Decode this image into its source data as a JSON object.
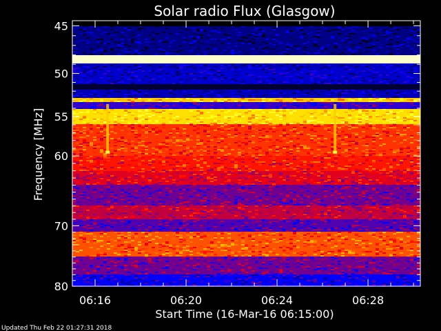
{
  "chart_data": {
    "type": "heatmap",
    "title": "Solar radio Flux (Glasgow)",
    "xlabel": "Start Time (16-Mar-16 06:15:00)",
    "ylabel": "Frequency [MHz]",
    "x_tick_labels": [
      "06:16",
      "06:20",
      "06:24",
      "06:28"
    ],
    "x_tick_minutes": [
      1,
      5,
      9,
      13
    ],
    "xlim_minutes": [
      0,
      15.3
    ],
    "y_tick_labels": [
      "45",
      "50",
      "55",
      "60",
      "70",
      "80"
    ],
    "y_ticks": [
      45,
      50,
      55,
      60,
      70,
      80
    ],
    "ylim": [
      44.5,
      80
    ],
    "y_scale": "log",
    "colormap": [
      "#000000",
      "#0000ff",
      "#ff0000",
      "#ffff00",
      "#ffffff"
    ],
    "bands": [
      {
        "from": 44.5,
        "to": 45.0,
        "level": 0.0
      },
      {
        "from": 45.0,
        "to": 48.0,
        "level": 0.13
      },
      {
        "from": 48.0,
        "to": 48.9,
        "level": 0.95
      },
      {
        "from": 48.9,
        "to": 49.4,
        "level": 0.18
      },
      {
        "from": 49.4,
        "to": 51.2,
        "level": 0.2
      },
      {
        "from": 51.2,
        "to": 51.9,
        "level": 0.05
      },
      {
        "from": 51.9,
        "to": 52.7,
        "level": 0.18
      },
      {
        "from": 52.7,
        "to": 53.2,
        "level": 0.7
      },
      {
        "from": 53.2,
        "to": 54.0,
        "level": 0.3
      },
      {
        "from": 54.0,
        "to": 56.0,
        "level": 0.72
      },
      {
        "from": 56.0,
        "to": 60.0,
        "level": 0.55
      },
      {
        "from": 60.0,
        "to": 62.0,
        "level": 0.52
      },
      {
        "from": 62.0,
        "to": 64.0,
        "level": 0.47
      },
      {
        "from": 64.0,
        "to": 67.0,
        "level": 0.36
      },
      {
        "from": 67.0,
        "to": 69.0,
        "level": 0.44
      },
      {
        "from": 69.0,
        "to": 71.0,
        "level": 0.33
      },
      {
        "from": 71.0,
        "to": 75.0,
        "level": 0.58
      },
      {
        "from": 75.0,
        "to": 78.0,
        "level": 0.36
      },
      {
        "from": 78.0,
        "to": 80.0,
        "level": 0.25
      }
    ],
    "bursts": [
      {
        "time_min": 1.55,
        "freq_from": 53.5,
        "freq_to": 59.6
      },
      {
        "time_min": 11.55,
        "freq_from": 53.5,
        "freq_to": 59.6
      }
    ]
  },
  "footer": {
    "updated": "Updated Thu Feb 22 01:27:31 2018"
  }
}
